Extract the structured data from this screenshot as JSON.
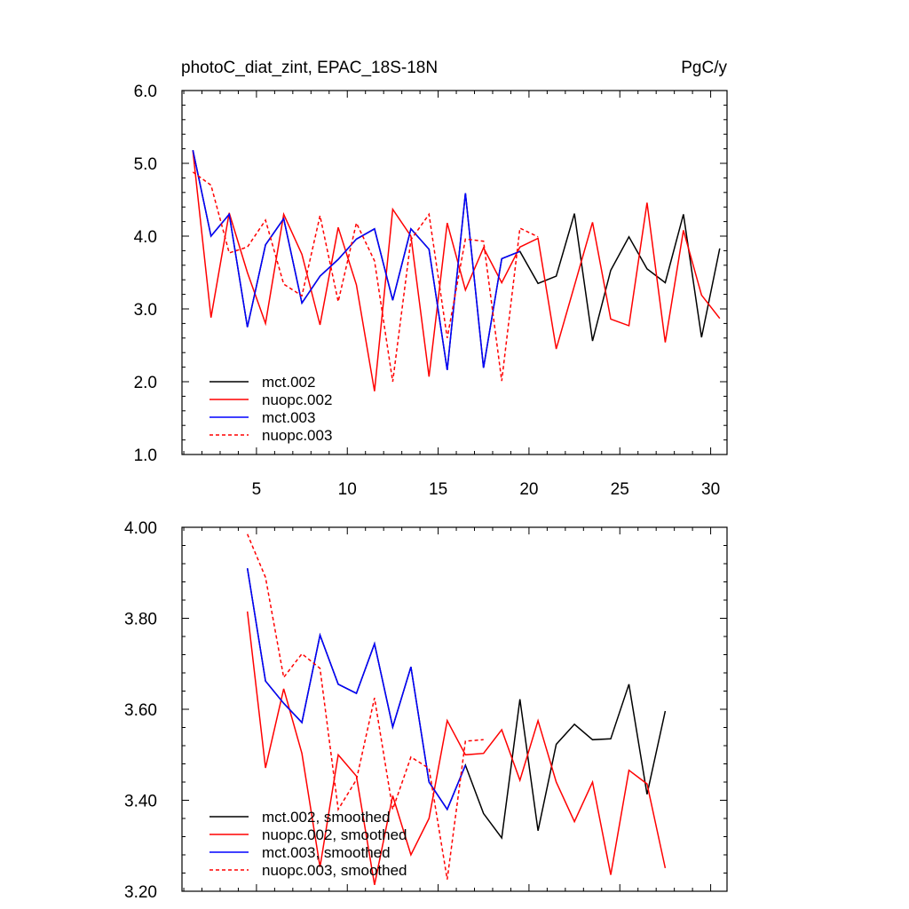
{
  "chart_data": [
    {
      "type": "line",
      "title": "photoC_diat_zint, EPAC_18S-18N",
      "units": "PgC/y",
      "xlim": [
        0.9,
        30.9
      ],
      "ylim": [
        1.0,
        6.0
      ],
      "xticks": [
        5,
        10,
        15,
        20,
        25,
        30
      ],
      "xtick_labels": [
        "5",
        "10",
        "15",
        "20",
        "25",
        "30"
      ],
      "yticks": [
        1.0,
        2.0,
        3.0,
        4.0,
        5.0,
        6.0
      ],
      "ytick_labels": [
        "1.0",
        "2.0",
        "3.0",
        "4.0",
        "5.0",
        "6.0"
      ],
      "legend_position": "bottom-left",
      "series": [
        {
          "name": "mct.002",
          "color": "#000000",
          "dash": "solid",
          "x": [
            1.5,
            2.5,
            3.5,
            4.5,
            5.5,
            6.5,
            7.5,
            8.5,
            9.5,
            10.5,
            11.5,
            12.5,
            13.5,
            14.5,
            15.5,
            16.5,
            17.5,
            18.5,
            19.5,
            20.5,
            21.5,
            22.5,
            23.5,
            24.5,
            25.5,
            26.5,
            27.5,
            28.5,
            29.5,
            30.5
          ],
          "values": [
            5.18,
            4.0,
            4.3,
            2.75,
            3.88,
            4.24,
            3.08,
            3.45,
            3.68,
            3.96,
            4.1,
            3.12,
            4.1,
            3.82,
            2.16,
            4.59,
            2.19,
            3.69,
            3.79,
            3.35,
            3.45,
            4.31,
            2.56,
            3.53,
            3.99,
            3.55,
            3.36,
            4.3,
            2.61,
            3.83
          ]
        },
        {
          "name": "nuopc.002",
          "color": "#ff0000",
          "dash": "solid",
          "x": [
            1.5,
            2.5,
            3.5,
            4.5,
            5.5,
            6.5,
            7.5,
            8.5,
            9.5,
            10.5,
            11.5,
            12.5,
            13.5,
            14.5,
            15.5,
            16.5,
            17.5,
            18.5,
            19.5,
            20.5,
            21.5,
            22.5,
            23.5,
            24.5,
            25.5,
            26.5,
            27.5,
            28.5,
            29.5,
            30.5
          ],
          "values": [
            5.17,
            2.88,
            4.32,
            3.5,
            2.8,
            4.3,
            3.75,
            2.78,
            4.12,
            3.33,
            1.87,
            4.37,
            4.0,
            2.07,
            4.18,
            3.26,
            3.84,
            3.36,
            3.85,
            3.97,
            2.45,
            3.32,
            4.19,
            2.86,
            2.77,
            4.46,
            2.54,
            4.08,
            3.19,
            2.87
          ]
        },
        {
          "name": "mct.003",
          "color": "#0000ff",
          "dash": "solid",
          "x": [
            1.5,
            2.5,
            3.5,
            4.5,
            5.5,
            6.5,
            7.5,
            8.5,
            9.5,
            10.5,
            11.5,
            12.5,
            13.5,
            14.5,
            15.5,
            16.5,
            17.5,
            18.5,
            19.5
          ],
          "values": [
            5.18,
            4.0,
            4.3,
            2.75,
            3.88,
            4.24,
            3.08,
            3.45,
            3.68,
            3.96,
            4.1,
            3.12,
            4.1,
            3.82,
            2.16,
            4.59,
            2.19,
            3.69,
            3.79
          ]
        },
        {
          "name": "nuopc.003",
          "color": "#ff0000",
          "dash": "dashed",
          "x": [
            1.5,
            2.5,
            3.5,
            4.5,
            5.5,
            6.5,
            7.5,
            8.5,
            9.5,
            10.5,
            11.5,
            12.5,
            13.5,
            14.5,
            15.5,
            16.5,
            17.5,
            18.5,
            19.5,
            20.5
          ],
          "values": [
            4.88,
            4.7,
            3.77,
            3.85,
            4.22,
            3.34,
            3.18,
            4.28,
            3.1,
            4.18,
            3.66,
            2.0,
            3.95,
            4.3,
            2.6,
            3.96,
            3.93,
            2.01,
            4.11,
            3.99
          ]
        }
      ]
    },
    {
      "type": "line",
      "xlim": [
        0.9,
        30.9
      ],
      "ylim": [
        3.2,
        4.0
      ],
      "xticks": [
        5,
        10,
        15,
        20,
        25,
        30
      ],
      "xtick_labels": [],
      "yticks": [
        3.2,
        3.4,
        3.6,
        3.8,
        4.0
      ],
      "ytick_labels": [
        "3.20",
        "3.40",
        "3.60",
        "3.80",
        "4.00"
      ],
      "legend_position": "bottom-left",
      "series": [
        {
          "name": "mct.002, smoothed",
          "color": "#000000",
          "dash": "solid",
          "x": [
            4.5,
            5.5,
            6.5,
            7.5,
            8.5,
            9.5,
            10.5,
            11.5,
            12.5,
            13.5,
            14.5,
            15.5,
            16.5,
            17.5,
            18.5,
            19.5,
            20.5,
            21.5,
            22.5,
            23.5,
            24.5,
            25.5,
            26.5,
            27.5
          ],
          "values": [
            3.91,
            3.662,
            3.613,
            3.571,
            3.763,
            3.655,
            3.635,
            3.744,
            3.561,
            3.693,
            3.44,
            3.38,
            3.477,
            3.371,
            3.317,
            3.622,
            3.333,
            3.523,
            3.567,
            3.533,
            3.535,
            3.655,
            3.413,
            3.596
          ]
        },
        {
          "name": "nuopc.002, smoothed",
          "color": "#ff0000",
          "dash": "solid",
          "x": [
            4.5,
            5.5,
            6.5,
            7.5,
            8.5,
            9.5,
            10.5,
            11.5,
            12.5,
            13.5,
            14.5,
            15.5,
            16.5,
            17.5,
            18.5,
            19.5,
            20.5,
            21.5,
            22.5,
            23.5,
            24.5,
            25.5,
            26.5,
            27.5
          ],
          "values": [
            3.815,
            3.471,
            3.645,
            3.503,
            3.253,
            3.5,
            3.453,
            3.214,
            3.41,
            3.28,
            3.36,
            3.575,
            3.5,
            3.503,
            3.555,
            3.444,
            3.575,
            3.44,
            3.353,
            3.44,
            3.236,
            3.466,
            3.436,
            3.251
          ]
        },
        {
          "name": "mct.003, smoothed",
          "color": "#0000ff",
          "dash": "solid",
          "x": [
            4.5,
            5.5,
            6.5,
            7.5,
            8.5,
            9.5,
            10.5,
            11.5,
            12.5,
            13.5,
            14.5,
            15.5,
            16.5
          ],
          "values": [
            3.91,
            3.662,
            3.613,
            3.571,
            3.763,
            3.655,
            3.635,
            3.744,
            3.561,
            3.693,
            3.44,
            3.38,
            3.477
          ]
        },
        {
          "name": "nuopc.003, smoothed",
          "color": "#ff0000",
          "dash": "dashed",
          "x": [
            4.5,
            5.5,
            6.5,
            7.5,
            8.5,
            9.5,
            10.5,
            11.5,
            12.5,
            13.5,
            14.5,
            15.5,
            16.5,
            17.5
          ],
          "values": [
            3.985,
            3.89,
            3.67,
            3.722,
            3.69,
            3.38,
            3.445,
            3.625,
            3.38,
            3.495,
            3.47,
            3.226,
            3.53,
            3.533
          ]
        }
      ]
    }
  ]
}
